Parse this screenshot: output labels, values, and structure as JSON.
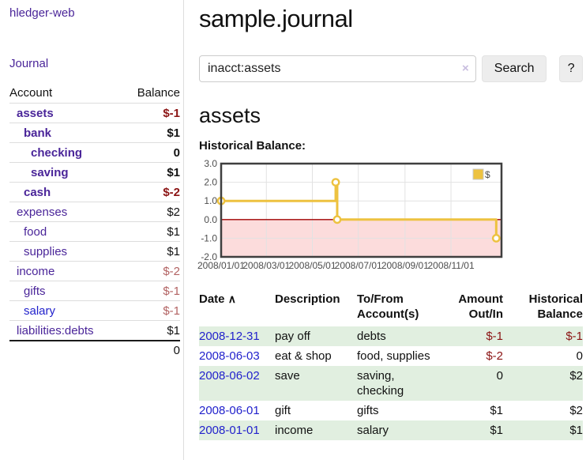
{
  "sidebar": {
    "app_title": "hledger-web",
    "journal_link": "Journal",
    "accounts_table": {
      "headers": {
        "account": "Account",
        "balance": "Balance"
      },
      "rows": [
        {
          "name": "assets",
          "balance": "$-1",
          "indent": 1,
          "bold": true,
          "name_color": "purple",
          "balance_color": "red"
        },
        {
          "name": "bank",
          "balance": "$1",
          "indent": 2,
          "bold": true,
          "name_color": "purple",
          "balance_color": "black"
        },
        {
          "name": "checking",
          "balance": "0",
          "indent": 3,
          "bold": true,
          "name_color": "purple",
          "balance_color": "black"
        },
        {
          "name": "saving",
          "balance": "$1",
          "indent": 3,
          "bold": true,
          "name_color": "purple",
          "balance_color": "black"
        },
        {
          "name": "cash",
          "balance": "$-2",
          "indent": 2,
          "bold": true,
          "name_color": "purple",
          "balance_color": "red"
        },
        {
          "name": "expenses",
          "balance": "$2",
          "indent": 1,
          "bold": false,
          "name_color": "purple",
          "balance_color": "black"
        },
        {
          "name": "food",
          "balance": "$1",
          "indent": 2,
          "bold": false,
          "name_color": "purple",
          "balance_color": "black"
        },
        {
          "name": "supplies",
          "balance": "$1",
          "indent": 2,
          "bold": false,
          "name_color": "purple",
          "balance_color": "black"
        },
        {
          "name": "income",
          "balance": "$-2",
          "indent": 1,
          "bold": false,
          "name_color": "purple",
          "balance_color": "rose"
        },
        {
          "name": "gifts",
          "balance": "$-1",
          "indent": 2,
          "bold": false,
          "name_color": "purple",
          "balance_color": "rose"
        },
        {
          "name": "salary",
          "balance": "$-1",
          "indent": 2,
          "bold": false,
          "name_color": "blue",
          "balance_color": "rose"
        },
        {
          "name": "liabilities:debts",
          "balance": "$1",
          "indent": 1,
          "bold": false,
          "name_color": "purple",
          "balance_color": "black"
        }
      ],
      "total": "0"
    }
  },
  "main": {
    "title": "sample.journal",
    "search": {
      "value": "inacct:assets",
      "clear_icon": "×",
      "search_button": "Search",
      "help_button": "?"
    },
    "account_heading": "assets",
    "chart_heading": "Historical Balance:",
    "register_table": {
      "headers": {
        "date": "Date",
        "sort_icon": "∧",
        "description": "Description",
        "accounts_line1": "To/From",
        "accounts_line2": "Account(s)",
        "amount_line1": "Amount",
        "amount_line2": "Out/In",
        "balance_line1": "Historical",
        "balance_line2": "Balance"
      },
      "rows": [
        {
          "date": "2008-12-31",
          "description": "pay off",
          "accounts": "debts",
          "amount": "$-1",
          "amount_color": "red",
          "balance": "$-1",
          "balance_color": "red"
        },
        {
          "date": "2008-06-03",
          "description": "eat & shop",
          "accounts": "food, supplies",
          "amount": "$-2",
          "amount_color": "red",
          "balance": "0",
          "balance_color": "black"
        },
        {
          "date": "2008-06-02",
          "description": "save",
          "accounts": "saving, checking",
          "amount": "0",
          "amount_color": "black",
          "balance": "$2",
          "balance_color": "black"
        },
        {
          "date": "2008-06-01",
          "description": "gift",
          "accounts": "gifts",
          "amount": "$1",
          "amount_color": "black",
          "balance": "$2",
          "balance_color": "black"
        },
        {
          "date": "2008-01-01",
          "description": "income",
          "accounts": "salary",
          "amount": "$1",
          "amount_color": "black",
          "balance": "$1",
          "balance_color": "black"
        }
      ]
    }
  },
  "chart_data": {
    "type": "line",
    "title": "Historical Balance",
    "legend": [
      {
        "label": "$",
        "color": "#edc240"
      }
    ],
    "legend_position": "top-right",
    "grid": true,
    "ylim": [
      -2,
      3
    ],
    "x_domain_days": [
      0,
      372
    ],
    "y_ticks": [
      {
        "v": 3,
        "label": "3.0"
      },
      {
        "v": 2,
        "label": "2.0"
      },
      {
        "v": 1,
        "label": "1.0"
      },
      {
        "v": 0,
        "label": "0.0"
      },
      {
        "v": -1,
        "label": "-1.0"
      },
      {
        "v": -2,
        "label": "-2.0"
      }
    ],
    "x_ticks": [
      {
        "day": 0,
        "label": "2008/01/01"
      },
      {
        "day": 60,
        "label": "2008/03/01"
      },
      {
        "day": 121,
        "label": "2008/05/01"
      },
      {
        "day": 182,
        "label": "2008/07/01"
      },
      {
        "day": 244,
        "label": "2008/09/01"
      },
      {
        "day": 305,
        "label": "2008/11/01"
      }
    ],
    "series": [
      {
        "name": "$",
        "color": "#edc240",
        "line_points": [
          {
            "date": "2008-01-01",
            "day": 0,
            "y": 1
          },
          {
            "date": "2008-06-01",
            "day": 152,
            "y": 1
          },
          {
            "date": "2008-06-01",
            "day": 152,
            "y": 2
          },
          {
            "date": "2008-06-03",
            "day": 154,
            "y": 2
          },
          {
            "date": "2008-06-03",
            "day": 154,
            "y": 0
          },
          {
            "date": "2008-12-31",
            "day": 365,
            "y": 0
          },
          {
            "date": "2008-12-31",
            "day": 365,
            "y": -1
          }
        ],
        "markers": [
          {
            "day": 0,
            "y": 1
          },
          {
            "day": 152,
            "y": 2
          },
          {
            "day": 154,
            "y": 0
          },
          {
            "day": 365,
            "y": -1
          }
        ]
      }
    ],
    "negative_region": {
      "from": 0,
      "to": -2,
      "fill": "#fcdcdc",
      "line_color": "#a00000"
    }
  },
  "colors": {
    "link_purple": "#4a2599",
    "link_blue": "#2222cc",
    "negative": "#8b1414",
    "negative_muted": "#b26262",
    "row_stripe_green": "#e1efe0",
    "accent_gold": "#edc240",
    "chart_border": "#3f3f3f"
  }
}
